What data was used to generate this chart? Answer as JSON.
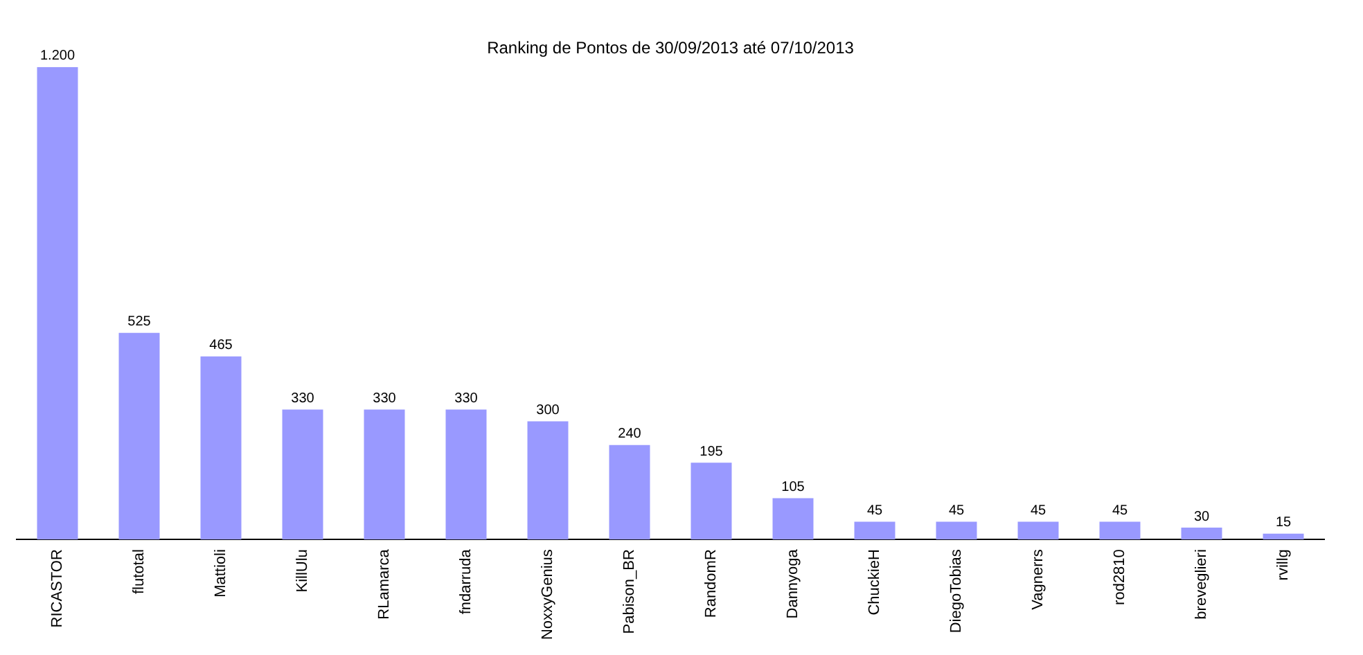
{
  "chart_data": {
    "type": "bar",
    "title": "Ranking de Pontos de 30/09/2013 até 07/10/2013",
    "categories": [
      "RICASTOR",
      "flutotal",
      "Mattioli",
      "KillUlu",
      "RLamarca",
      "fndarruda",
      "NoxxyGenius",
      "Pabison_BR",
      "RandomR",
      "Dannyoga",
      "ChuckieH",
      "DiegoTobias",
      "Vagnerrs",
      "rod2810",
      "breveglieri",
      "rvillg"
    ],
    "values": [
      1200,
      525,
      465,
      330,
      330,
      330,
      300,
      240,
      195,
      105,
      45,
      45,
      45,
      45,
      30,
      15
    ],
    "value_labels": [
      "1.200",
      "525",
      "465",
      "330",
      "330",
      "330",
      "300",
      "240",
      "195",
      "105",
      "45",
      "45",
      "45",
      "45",
      "30",
      "15"
    ],
    "color": "#9999ff",
    "grid": false,
    "legend": false
  }
}
